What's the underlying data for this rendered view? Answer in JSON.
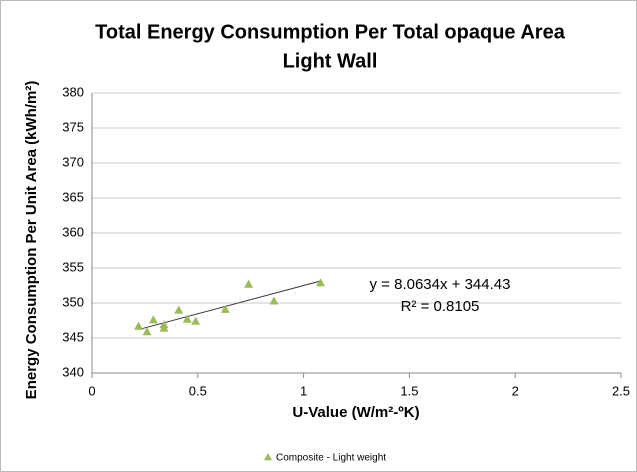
{
  "chart_data": {
    "type": "scatter",
    "title": [
      "Total Energy Consumption Per Total opaque Area",
      "Light Wall"
    ],
    "xlabel": "U-Value (W/m²-ºK)",
    "ylabel": "Energy Consumption Per Unit Area (kWh/m²)",
    "series": [
      {
        "name": "Composite - Light weight",
        "color": "#9bbb59",
        "x": [
          0.22,
          0.26,
          0.29,
          0.34,
          0.34,
          0.41,
          0.45,
          0.49,
          0.63,
          0.74,
          0.86,
          1.08
        ],
        "values": [
          346.7,
          345.9,
          347.6,
          346.9,
          346.4,
          349.0,
          347.7,
          347.4,
          349.1,
          352.7,
          350.3,
          352.9
        ]
      }
    ],
    "trendline": {
      "slope": 8.0634,
      "intercept": 344.43,
      "label": "y = 8.0634x + 344.43",
      "r2_label": "R² = 0.8105"
    },
    "xlim": [
      0,
      2.5
    ],
    "xticks": [
      0,
      0.5,
      1,
      1.5,
      2,
      2.5
    ],
    "ylim": [
      340,
      380
    ],
    "yticks": [
      340,
      345,
      350,
      355,
      360,
      365,
      370,
      375,
      380
    ],
    "grid": true,
    "legend": "bottom"
  }
}
